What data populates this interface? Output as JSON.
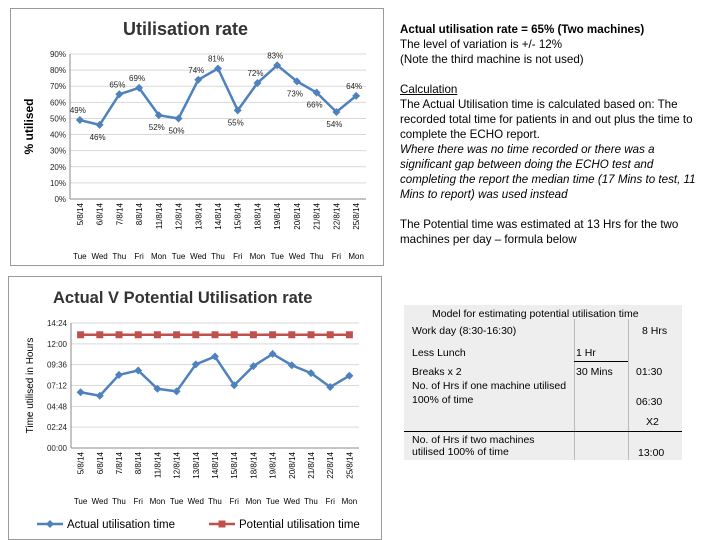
{
  "notes": {
    "line1": "Actual utilisation rate = 65% (Two machines)",
    "line2": "The level of variation is +/- 12%",
    "line3": "(Note the third machine is not used)",
    "calc_heading": "Calculation",
    "calc_text": "The Actual Utilisation time is calculated based on: The recorded total time for patients in and out plus the time to complete the ECHO report.",
    "calc_italic": "Where there was no time recorded or there was a significant gap between doing the ECHO test and completing the report the median time (17 Mins to test, 11 Mins to report) was used instead",
    "potential_text": "The Potential time was estimated at 13 Hrs for the two machines per day – formula below"
  },
  "model": {
    "title": "Model for estimating potential utilisation time",
    "workday_label": "Work day (8:30-16:30)",
    "workday_value": "8 Hrs",
    "lunch_label": "Less Lunch",
    "lunch_value": "1 Hr",
    "breaks_label": "Breaks x 2",
    "breaks_mins": "30 Mins",
    "breaks_value": "01:30",
    "one_machine_label1": "No. of Hrs if one machine utilised",
    "one_machine_label2": "100% of time",
    "one_machine_value": "06:30",
    "multiplier": "X2",
    "two_machines_label1": "No. of Hrs if two machines",
    "two_machines_label2": "utilised 100% of time",
    "two_machines_value": "13:00"
  },
  "chart_data": [
    {
      "type": "line",
      "title": "Utilisation rate",
      "ylabel": "% utilised",
      "xlabel": "",
      "ylim": [
        0,
        90
      ],
      "yticks": [
        "0%",
        "10%",
        "20%",
        "30%",
        "40%",
        "50%",
        "60%",
        "70%",
        "80%",
        "90%"
      ],
      "categories": [
        "5/8/14",
        "6/8/14",
        "7/8/14",
        "8/8/14",
        "11/8/14",
        "12/8/14",
        "13/8/14",
        "14/8/14",
        "15/8/14",
        "18/8/14",
        "19/8/14",
        "20/8/14",
        "21/8/14",
        "22/8/14",
        "25/8/14"
      ],
      "days": [
        "Tue",
        "Wed",
        "Thu",
        "Fri",
        "Mon",
        "Tue",
        "Wed",
        "Thu",
        "Fri",
        "Mon",
        "Tue",
        "Wed",
        "Thu",
        "Fri",
        "Mon"
      ],
      "values": [
        49,
        46,
        65,
        69,
        52,
        50,
        74,
        81,
        55,
        72,
        83,
        73,
        66,
        54,
        64
      ],
      "labels": [
        "49%",
        "46%",
        "65%",
        "69%",
        "52%",
        "50%",
        "74%",
        "81%",
        "55%",
        "72%",
        "83%",
        "73%",
        "66%",
        "54%",
        "64%"
      ],
      "color": "#4f81bd",
      "grid": true
    },
    {
      "type": "line",
      "title": "Actual V Potential Utilisation rate",
      "ylabel": "Time utilised in Hours",
      "xlabel": "",
      "ylim": [
        0,
        14.35
      ],
      "yticks": [
        "00:00",
        "02:24",
        "04:48",
        "07:12",
        "09:36",
        "12:00",
        "14:24"
      ],
      "categories": [
        "5/8/14",
        "6/8/14",
        "7/8/14",
        "8/8/14",
        "11/8/14",
        "12/8/14",
        "13/8/14",
        "14/8/14",
        "15/8/14",
        "18/8/14",
        "19/8/14",
        "20/8/14",
        "21/8/14",
        "22/8/14",
        "25/8/14"
      ],
      "days": [
        "Tue",
        "Wed",
        "Thu",
        "Fri",
        "Mon",
        "Tue",
        "Wed",
        "Thu",
        "Fri",
        "Mon",
        "Tue",
        "Wed",
        "Thu",
        "Fri",
        "Mon"
      ],
      "series": [
        {
          "name": "Actual utilisation time",
          "color": "#4f81bd",
          "marker": "diamond",
          "values": [
            6.4,
            6.0,
            8.4,
            8.9,
            6.8,
            6.5,
            9.6,
            10.5,
            7.2,
            9.4,
            10.8,
            9.5,
            8.6,
            7.0,
            8.3
          ]
        },
        {
          "name": "Potential utilisation time",
          "color": "#c0504d",
          "marker": "square",
          "values": [
            13,
            13,
            13,
            13,
            13,
            13,
            13,
            13,
            13,
            13,
            13,
            13,
            13,
            13,
            13
          ]
        }
      ],
      "legend": "bottom",
      "grid": true
    }
  ]
}
